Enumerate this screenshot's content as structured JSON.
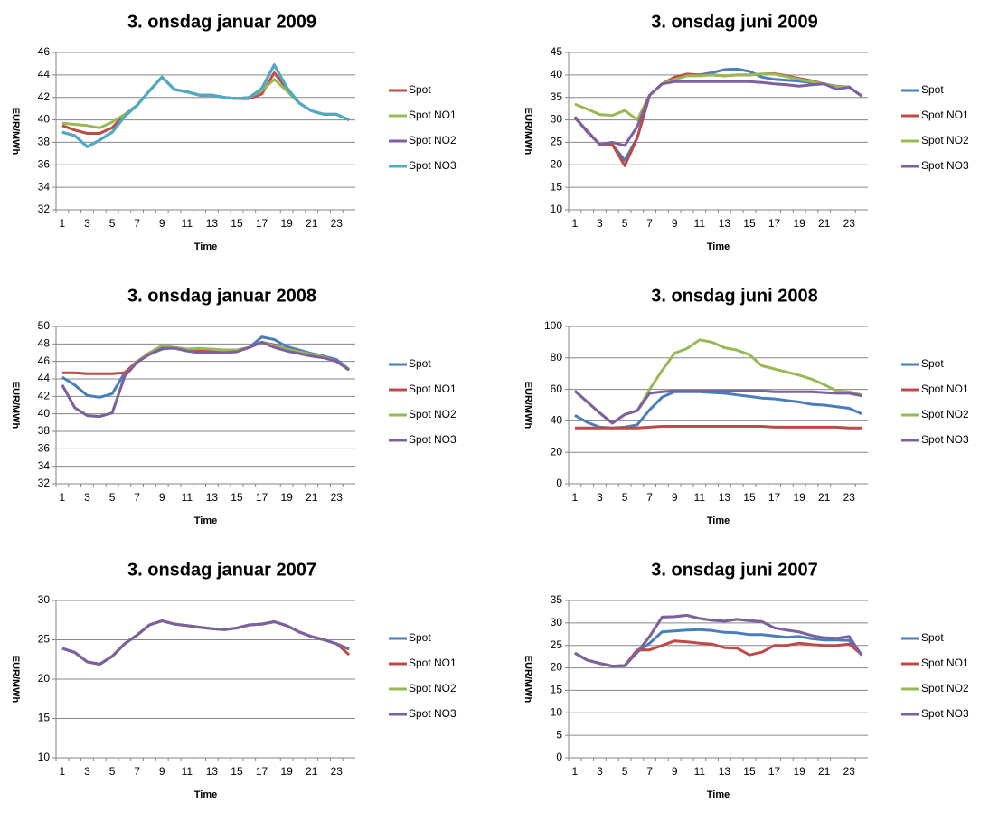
{
  "chart_data": [
    {
      "type": "line",
      "title": "3. onsdag januar 2009",
      "x_label": "Time",
      "y_label": "EUR/MWh",
      "categories": [
        1,
        null,
        3,
        null,
        5,
        null,
        7,
        null,
        9,
        null,
        11,
        null,
        13,
        null,
        15,
        null,
        17,
        null,
        19,
        null,
        21,
        null,
        23,
        null
      ],
      "ylim": [
        32,
        46
      ],
      "yticks": [
        32,
        34,
        36,
        38,
        40,
        42,
        44,
        46
      ],
      "grid": true,
      "series": [
        {
          "name": "Spot",
          "color": "#be4b48",
          "values": [
            39.5,
            39.1,
            38.8,
            38.8,
            39.3,
            40.5,
            41.3,
            42.6,
            43.8,
            42.7,
            42.5,
            42.2,
            42.2,
            42,
            41.9,
            41.9,
            42.3,
            44.2,
            42.8,
            41.5,
            40.8,
            40.5,
            40.5,
            40
          ]
        },
        {
          "name": "Spot NO1",
          "color": "#98b954",
          "values": [
            39.7,
            39.6,
            39.5,
            39.3,
            39.8,
            40.5,
            41.3,
            42.6,
            43.8,
            42.7,
            42.5,
            42.2,
            42.2,
            42,
            41.9,
            42,
            42.6,
            43.6,
            42.6,
            41.5,
            40.8,
            40.5,
            40.5,
            40
          ]
        },
        {
          "name": "Spot NO2",
          "color": "#7d60a0",
          "values": [
            38.9,
            38.6,
            37.6,
            38.2,
            38.9,
            40.3,
            41.3,
            42.6,
            43.8,
            42.7,
            42.5,
            42.2,
            42.2,
            42,
            41.9,
            42,
            42.8,
            44.9,
            42.9,
            41.5,
            40.8,
            40.5,
            40.5,
            40
          ]
        },
        {
          "name": "Spot NO3",
          "color": "#4bacc6",
          "values": [
            38.9,
            38.6,
            37.6,
            38.2,
            38.9,
            40.3,
            41.3,
            42.6,
            43.8,
            42.7,
            42.5,
            42.2,
            42.2,
            42,
            41.9,
            42,
            42.8,
            44.9,
            42.9,
            41.5,
            40.8,
            40.5,
            40.5,
            40
          ]
        }
      ]
    },
    {
      "type": "line",
      "title": "3. onsdag juni 2009",
      "x_label": "Time",
      "y_label": "EUR/MWh",
      "categories": [
        1,
        null,
        3,
        null,
        5,
        null,
        7,
        null,
        9,
        null,
        11,
        null,
        13,
        null,
        15,
        null,
        17,
        null,
        19,
        null,
        21,
        null,
        23,
        null
      ],
      "ylim": [
        10,
        45
      ],
      "yticks": [
        10,
        15,
        20,
        25,
        30,
        35,
        40,
        45
      ],
      "grid": true,
      "series": [
        {
          "name": "Spot",
          "color": "#4a7ebb",
          "values": [
            30.5,
            27.5,
            24.5,
            24.5,
            21,
            26,
            35.5,
            38,
            39,
            40,
            40,
            40.5,
            41.2,
            41.3,
            40.8,
            39.5,
            39,
            38.8,
            38.6,
            38.3,
            38,
            37.5,
            37.3,
            35.3
          ]
        },
        {
          "name": "Spot NO1",
          "color": "#be4b48",
          "values": [
            30.5,
            27.5,
            24.5,
            24.5,
            19.8,
            26,
            35.5,
            38,
            39.5,
            40.2,
            40,
            40,
            39.8,
            40,
            40,
            40.2,
            40.3,
            39.8,
            39.2,
            38.7,
            38,
            37.4,
            37.3,
            35.3
          ]
        },
        {
          "name": "Spot NO2",
          "color": "#98b954",
          "values": [
            33.5,
            32.4,
            31.2,
            31,
            32.1,
            30,
            35.5,
            38,
            39,
            39.8,
            39.8,
            40,
            39.8,
            40,
            40,
            40.2,
            40.2,
            39.6,
            39,
            38.5,
            38,
            37.4,
            37.3,
            35.3
          ]
        },
        {
          "name": "Spot NO3",
          "color": "#7d60a0",
          "values": [
            30.7,
            27.3,
            24.5,
            25,
            24.3,
            28.5,
            35.5,
            38,
            38.5,
            38.5,
            38.5,
            38.5,
            38.5,
            38.5,
            38.5,
            38.3,
            38,
            37.8,
            37.5,
            37.8,
            38,
            36.8,
            37.3,
            35.3
          ]
        }
      ]
    },
    {
      "type": "line",
      "title": "3. onsdag januar 2008",
      "x_label": "Time",
      "y_label": "EUR/MWh",
      "categories": [
        1,
        null,
        3,
        null,
        5,
        null,
        7,
        null,
        9,
        null,
        11,
        null,
        13,
        null,
        15,
        null,
        17,
        null,
        19,
        null,
        21,
        null,
        23,
        null
      ],
      "ylim": [
        32,
        50
      ],
      "yticks": [
        32,
        34,
        36,
        38,
        40,
        42,
        44,
        46,
        48,
        50
      ],
      "grid": true,
      "series": [
        {
          "name": "Spot",
          "color": "#4a7ebb",
          "values": [
            44.2,
            43.3,
            42.1,
            41.9,
            42.3,
            44.7,
            46,
            46.8,
            47.4,
            47.6,
            47.4,
            47.3,
            47.4,
            47.3,
            47.3,
            47.6,
            48.8,
            48.5,
            47.7,
            47.3,
            46.9,
            46.6,
            46.2,
            45.1
          ]
        },
        {
          "name": "Spot NO1",
          "color": "#be4b48",
          "values": [
            44.7,
            44.7,
            44.6,
            44.6,
            44.6,
            44.7,
            46,
            47,
            47.6,
            47.6,
            47.4,
            47.3,
            47.3,
            47.3,
            47.3,
            47.6,
            48.2,
            47.9,
            47.4,
            47.1,
            46.8,
            46.5,
            46,
            45.1
          ]
        },
        {
          "name": "Spot NO2",
          "color": "#98b954",
          "values": [
            43.3,
            40.7,
            39.8,
            39.7,
            40.1,
            44.3,
            46,
            47,
            47.8,
            47.6,
            47.4,
            47.5,
            47.4,
            47.3,
            47.3,
            47.6,
            48.2,
            47.8,
            47.4,
            47.1,
            46.8,
            46.5,
            46,
            45.1
          ]
        },
        {
          "name": "Spot NO3",
          "color": "#7d60a0",
          "values": [
            43.3,
            40.7,
            39.8,
            39.7,
            40.1,
            44.3,
            45.9,
            46.8,
            47.5,
            47.5,
            47.2,
            47,
            47,
            47,
            47.1,
            47.6,
            48.2,
            47.6,
            47.2,
            46.9,
            46.6,
            46.4,
            46,
            45
          ]
        }
      ]
    },
    {
      "type": "line",
      "title": "3. onsdag juni 2008",
      "x_label": "Time",
      "y_label": "EUR/MWh",
      "categories": [
        1,
        null,
        3,
        null,
        5,
        null,
        7,
        null,
        9,
        null,
        11,
        null,
        13,
        null,
        15,
        null,
        17,
        null,
        19,
        null,
        21,
        null,
        23,
        null
      ],
      "ylim": [
        0,
        100
      ],
      "yticks": [
        0,
        20,
        40,
        60,
        80,
        100
      ],
      "grid": true,
      "series": [
        {
          "name": "Spot",
          "color": "#4a7ebb",
          "values": [
            43.5,
            39,
            36,
            35.5,
            36,
            37.5,
            47,
            55,
            58.5,
            58.5,
            58.5,
            58,
            57.5,
            56.5,
            55.5,
            54.5,
            54,
            53,
            52,
            50.5,
            50,
            49,
            48,
            44.5
          ]
        },
        {
          "name": "Spot NO1",
          "color": "#be4b48",
          "values": [
            35.5,
            35.5,
            35.5,
            35.5,
            35.5,
            35.5,
            36,
            36.5,
            36.5,
            36.5,
            36.5,
            36.5,
            36.5,
            36.5,
            36.5,
            36.5,
            36,
            36,
            36,
            36,
            36,
            36,
            35.5,
            35.5
          ]
        },
        {
          "name": "Spot NO2",
          "color": "#98b954",
          "values": [
            59,
            52,
            45,
            38.5,
            44,
            46.5,
            60,
            72,
            83,
            86,
            91.5,
            90,
            86.5,
            85,
            82,
            75,
            73,
            71,
            69,
            66.5,
            63,
            59,
            58.5,
            56.5
          ]
        },
        {
          "name": "Spot NO3",
          "color": "#7d60a0",
          "values": [
            59,
            52,
            45,
            38.5,
            44,
            46.5,
            57.5,
            58.5,
            59,
            59,
            59,
            59,
            59,
            59,
            59,
            59,
            58.5,
            58.5,
            58.5,
            58.5,
            58,
            57.5,
            57.5,
            56
          ]
        }
      ]
    },
    {
      "type": "line",
      "title": "3. onsdag januar 2007",
      "x_label": "Time",
      "y_label": "EUR/MWh",
      "categories": [
        1,
        null,
        3,
        null,
        5,
        null,
        7,
        null,
        9,
        null,
        11,
        null,
        13,
        null,
        15,
        null,
        17,
        null,
        19,
        null,
        21,
        null,
        23,
        null
      ],
      "ylim": [
        10,
        30
      ],
      "yticks": [
        10,
        15,
        20,
        25,
        30
      ],
      "grid": true,
      "series": [
        {
          "name": "Spot",
          "color": "#4a7ebb",
          "values": [
            23.9,
            23.4,
            22.2,
            21.9,
            22.9,
            24.5,
            25.6,
            26.9,
            27.4,
            27,
            26.8,
            26.6,
            26.4,
            26.3,
            26.5,
            26.9,
            27,
            27.3,
            26.8,
            26,
            25.4,
            25,
            24.5,
            23.8
          ]
        },
        {
          "name": "Spot NO1",
          "color": "#be4b48",
          "values": [
            23.9,
            23.4,
            22.2,
            21.9,
            22.9,
            24.5,
            25.6,
            26.9,
            27.4,
            27,
            26.8,
            26.6,
            26.4,
            26.3,
            26.5,
            26.9,
            27,
            27.3,
            26.8,
            26,
            25.4,
            25,
            24.5,
            23.1
          ]
        },
        {
          "name": "Spot NO2",
          "color": "#98b954",
          "values": [
            23.9,
            23.4,
            22.2,
            21.9,
            22.9,
            24.5,
            25.6,
            26.9,
            27.4,
            27,
            26.8,
            26.6,
            26.4,
            26.3,
            26.5,
            26.9,
            27,
            27.3,
            26.8,
            26,
            25.4,
            25,
            24.5,
            23.8
          ]
        },
        {
          "name": "Spot NO3",
          "color": "#7d60a0",
          "values": [
            23.9,
            23.4,
            22.2,
            21.9,
            22.9,
            24.5,
            25.6,
            26.9,
            27.4,
            27,
            26.8,
            26.6,
            26.4,
            26.3,
            26.5,
            26.9,
            27,
            27.3,
            26.8,
            26,
            25.4,
            25,
            24.5,
            23.8
          ]
        }
      ]
    },
    {
      "type": "line",
      "title": "3. onsdag juni 2007",
      "x_label": "Time",
      "y_label": "EUR/MWh",
      "categories": [
        1,
        null,
        3,
        null,
        5,
        null,
        7,
        null,
        9,
        null,
        11,
        null,
        13,
        null,
        15,
        null,
        17,
        null,
        19,
        null,
        21,
        null,
        23,
        null
      ],
      "ylim": [
        0,
        35
      ],
      "yticks": [
        0,
        5,
        10,
        15,
        20,
        25,
        30,
        35
      ],
      "grid": true,
      "series": [
        {
          "name": "Spot",
          "color": "#4a7ebb",
          "values": [
            23.3,
            21.7,
            21,
            20.4,
            20.5,
            23.5,
            25.5,
            28,
            28.2,
            28.4,
            28.5,
            28.3,
            27.9,
            27.8,
            27.4,
            27.4,
            27.1,
            26.8,
            27,
            26.5,
            26.2,
            26.2,
            26.1,
            23
          ]
        },
        {
          "name": "Spot NO1",
          "color": "#be4b48",
          "values": [
            23.3,
            21.7,
            21,
            20.4,
            20.5,
            24,
            24,
            25,
            26,
            25.8,
            25.5,
            25.3,
            24.5,
            24.4,
            22.9,
            23.5,
            25,
            25,
            25.5,
            25.2,
            25,
            25,
            25.3,
            23
          ]
        },
        {
          "name": "Spot NO2",
          "color": "#98b954",
          "values": [
            23.3,
            21.7,
            21,
            20.4,
            20.5,
            23.5,
            27,
            31.3,
            31.4,
            31.7,
            31,
            30.6,
            30.4,
            30.8,
            30.5,
            30.3,
            28.9,
            28.4,
            28,
            27.2,
            26.7,
            26.6,
            27,
            22.8
          ]
        },
        {
          "name": "Spot NO3",
          "color": "#7d60a0",
          "values": [
            23.3,
            21.7,
            21,
            20.4,
            20.5,
            23.5,
            27,
            31.3,
            31.4,
            31.7,
            31,
            30.6,
            30.4,
            30.8,
            30.5,
            30.3,
            28.9,
            28.4,
            28,
            27.2,
            26.7,
            26.6,
            27,
            22.8
          ]
        }
      ]
    }
  ]
}
